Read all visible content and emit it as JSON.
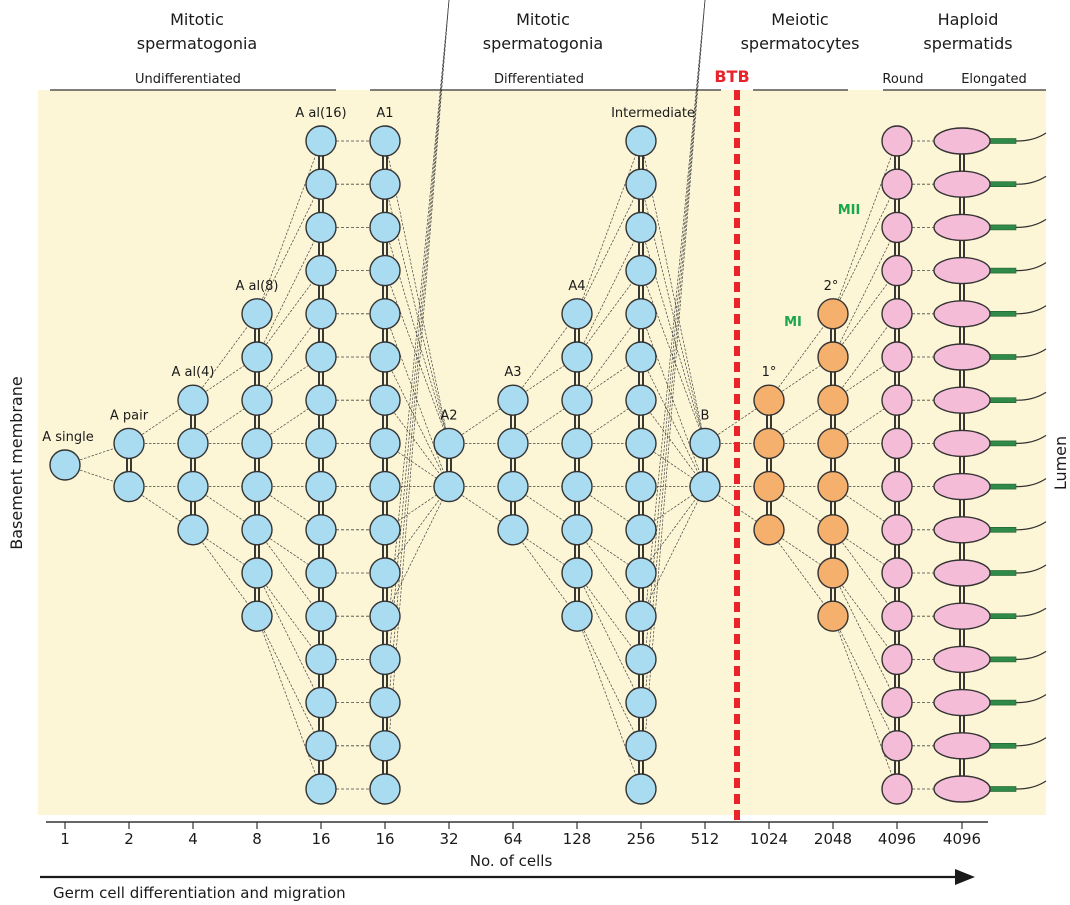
{
  "phases": {
    "mitotic_undiff": {
      "line1": "Mitotic",
      "line2": "spermatogonia"
    },
    "mitotic_diff": {
      "line1": "Mitotic",
      "line2": "spermatogonia"
    },
    "meiotic": {
      "line1": "Meiotic",
      "line2": "spermatocytes"
    },
    "haploid": {
      "line1": "Haploid",
      "line2": "spermatids"
    }
  },
  "subgroups": {
    "undifferentiated": "Undifferentiated",
    "differentiated": "Differentiated",
    "round": "Round",
    "elongated": "Elongated"
  },
  "btb_label": "BTB",
  "side_labels": {
    "left": "Basement membrane",
    "right": "Lumen"
  },
  "axis": {
    "title": "No. of cells",
    "arrow_label": "Germ cell differentiation and migration"
  },
  "columns": [
    {
      "label": "A single",
      "count_label": "1",
      "cells": 1,
      "kind": "sg"
    },
    {
      "label": "A pair",
      "count_label": "2",
      "cells": 2,
      "kind": "sg"
    },
    {
      "label": "A al(4)",
      "count_label": "4",
      "cells": 4,
      "kind": "sg"
    },
    {
      "label": "A al(8)",
      "count_label": "8",
      "cells": 8,
      "kind": "sg"
    },
    {
      "label": "A al(16)",
      "count_label": "16",
      "cells": 16,
      "kind": "sg"
    },
    {
      "label": "A1",
      "count_label": "16",
      "cells": 16,
      "kind": "sg"
    },
    {
      "label": "A2",
      "count_label": "32",
      "cells": 2,
      "kind": "sg"
    },
    {
      "label": "A3",
      "count_label": "64",
      "cells": 4,
      "kind": "sg"
    },
    {
      "label": "A4",
      "count_label": "128",
      "cells": 8,
      "kind": "sg"
    },
    {
      "label": "Intermediate",
      "count_label": "256",
      "cells": 16,
      "kind": "sg"
    },
    {
      "label": "B",
      "count_label": "512",
      "cells": 2,
      "kind": "sg"
    },
    {
      "label": "1°",
      "count_label": "1024",
      "cells": 4,
      "kind": "sc"
    },
    {
      "label": "2°",
      "count_label": "2048",
      "cells": 8,
      "kind": "sc"
    },
    {
      "label": "",
      "count_label": "4096",
      "cells": 16,
      "kind": "round"
    },
    {
      "label": "",
      "count_label": "4096",
      "cells": 16,
      "kind": "elong"
    }
  ],
  "division_labels": {
    "mi": "MI",
    "mii": "MII"
  },
  "colors": {
    "background": "#fdf6d6",
    "spermatogonia": "#a9dcf0",
    "spermatocytes": "#f5b06e",
    "spermatids": "#f5bcd8",
    "btb": "#e8242a",
    "division_label": "#1aa64a",
    "tail_band": "#2f8a4a"
  }
}
